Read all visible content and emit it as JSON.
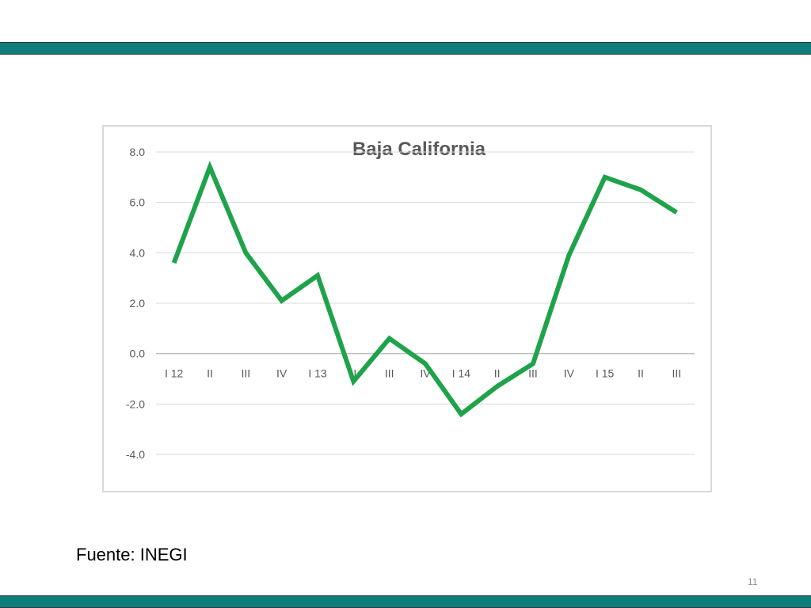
{
  "slide": {
    "source": "Fuente: INEGI",
    "page_number": "11",
    "band_color": "#0f7d7b"
  },
  "chart_data": {
    "type": "line",
    "title": "Baja California",
    "xlabel": "",
    "ylabel": "",
    "categories": [
      "I 12",
      "II",
      "III",
      "IV",
      "I 13",
      "II",
      "III",
      "IV",
      "I 14",
      "II",
      "III",
      "IV",
      "I 15",
      "II",
      "III"
    ],
    "series": [
      {
        "values": [
          3.6,
          7.4,
          4.0,
          2.1,
          3.1,
          -1.1,
          0.6,
          -0.4,
          -2.4,
          -1.3,
          -0.4,
          3.9,
          7.0,
          6.5,
          5.6
        ],
        "color": "#1fa34a"
      }
    ],
    "y_ticks": [
      "8.0",
      "6.0",
      "4.0",
      "2.0",
      "0.0",
      "-2.0",
      "-4.0"
    ],
    "ylim": [
      -4.0,
      8.0
    ],
    "grid": true,
    "legend": "none"
  }
}
